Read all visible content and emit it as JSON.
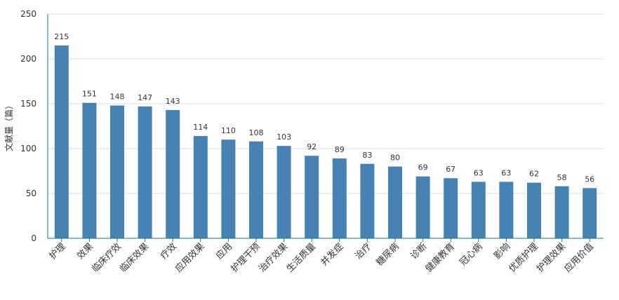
{
  "chart_data": {
    "type": "bar",
    "categories": [
      "护理",
      "效果",
      "临床疗效",
      "临床效果",
      "疗效",
      "应用效果",
      "应用",
      "护理干预",
      "治疗效果",
      "生活质量",
      "并发症",
      "治疗",
      "糖尿病",
      "诊断",
      "健康教育",
      "冠心病",
      "影响",
      "优质护理",
      "护理效果",
      "应用价值"
    ],
    "values": [
      215,
      151,
      148,
      147,
      143,
      114,
      110,
      108,
      103,
      92,
      89,
      83,
      80,
      69,
      67,
      63,
      63,
      62,
      58,
      56
    ],
    "ylabel": "文献量（篇）",
    "ylim": [
      0,
      250
    ],
    "yticks": [
      0,
      50,
      100,
      150,
      200,
      250
    ],
    "grid": true,
    "bar_color": "#4682b4",
    "axis_color": "#008080",
    "grid_color": "#dcdcdc"
  }
}
